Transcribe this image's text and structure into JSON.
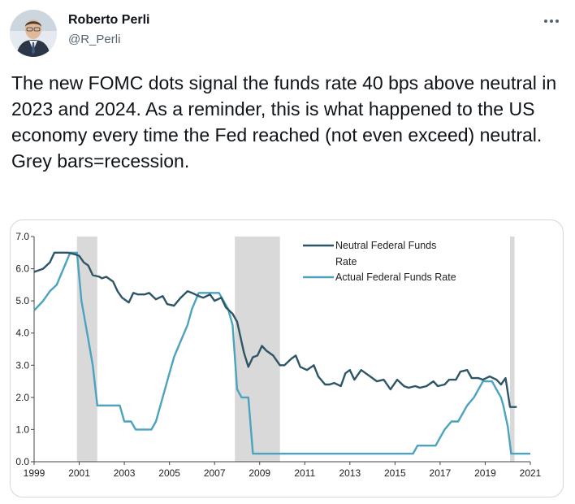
{
  "author": {
    "name": "Roberto Perli",
    "handle": "@R_Perli"
  },
  "tweet": {
    "text": "The new FOMC dots signal the funds rate 40 bps above neutral in 2023 and 2024.  As a reminder, this is what happened to the US economy every time the Fed reached (not even exceed) neutral.  Grey bars=recession."
  },
  "icons": {
    "more": "more-dots-icon",
    "avatar": "profile-photo"
  },
  "colors": {
    "neutral": "#2d5566",
    "actual": "#4ba3bf",
    "recession": "#d9d9d9"
  },
  "chart_data": {
    "type": "line",
    "ylim": [
      0,
      7
    ],
    "xlim": [
      1999,
      2021
    ],
    "yticks": [
      "0.0",
      "1.0",
      "2.0",
      "3.0",
      "4.0",
      "5.0",
      "6.0",
      "7.0"
    ],
    "xticks": [
      "1999",
      "2001",
      "2003",
      "2005",
      "2007",
      "2009",
      "2011",
      "2013",
      "2015",
      "2017",
      "2019",
      "2021"
    ],
    "legend_position": "top-right",
    "recessions": [
      [
        2000.9,
        2001.8
      ],
      [
        2007.9,
        2009.9
      ],
      [
        2020.1,
        2020.3
      ]
    ],
    "series": [
      {
        "name": "Neutral Federal Funds Rate",
        "color": "#2d5566",
        "points": [
          [
            1999.0,
            5.9
          ],
          [
            1999.4,
            6.0
          ],
          [
            1999.7,
            6.2
          ],
          [
            1999.9,
            6.5
          ],
          [
            2000.2,
            6.5
          ],
          [
            2000.5,
            6.5
          ],
          [
            2000.8,
            6.45
          ],
          [
            2001.0,
            6.4
          ],
          [
            2001.2,
            6.2
          ],
          [
            2001.4,
            6.1
          ],
          [
            2001.6,
            5.8
          ],
          [
            2001.9,
            5.75
          ],
          [
            2002.0,
            5.7
          ],
          [
            2002.2,
            5.75
          ],
          [
            2002.5,
            5.6
          ],
          [
            2002.7,
            5.3
          ],
          [
            2002.9,
            5.1
          ],
          [
            2003.2,
            4.95
          ],
          [
            2003.4,
            5.25
          ],
          [
            2003.6,
            5.2
          ],
          [
            2003.9,
            5.2
          ],
          [
            2004.1,
            5.25
          ],
          [
            2004.4,
            5.05
          ],
          [
            2004.7,
            5.15
          ],
          [
            2004.9,
            4.9
          ],
          [
            2005.2,
            4.85
          ],
          [
            2005.5,
            5.1
          ],
          [
            2005.8,
            5.3
          ],
          [
            2006.0,
            5.25
          ],
          [
            2006.3,
            5.15
          ],
          [
            2006.5,
            5.1
          ],
          [
            2006.8,
            5.2
          ],
          [
            2007.0,
            5.0
          ],
          [
            2007.3,
            5.1
          ],
          [
            2007.5,
            4.8
          ],
          [
            2007.8,
            4.6
          ],
          [
            2008.0,
            4.35
          ],
          [
            2008.3,
            3.4
          ],
          [
            2008.5,
            2.95
          ],
          [
            2008.7,
            3.25
          ],
          [
            2008.9,
            3.3
          ],
          [
            2009.1,
            3.6
          ],
          [
            2009.3,
            3.45
          ],
          [
            2009.6,
            3.3
          ],
          [
            2009.9,
            3.0
          ],
          [
            2010.1,
            3.0
          ],
          [
            2010.4,
            3.2
          ],
          [
            2010.6,
            3.3
          ],
          [
            2010.8,
            2.95
          ],
          [
            2011.1,
            2.85
          ],
          [
            2011.4,
            3.0
          ],
          [
            2011.6,
            2.65
          ],
          [
            2011.9,
            2.4
          ],
          [
            2012.1,
            2.4
          ],
          [
            2012.3,
            2.45
          ],
          [
            2012.6,
            2.35
          ],
          [
            2012.8,
            2.75
          ],
          [
            2013.0,
            2.85
          ],
          [
            2013.2,
            2.55
          ],
          [
            2013.5,
            2.85
          ],
          [
            2013.7,
            2.75
          ],
          [
            2014.0,
            2.6
          ],
          [
            2014.2,
            2.5
          ],
          [
            2014.5,
            2.55
          ],
          [
            2014.8,
            2.25
          ],
          [
            2015.1,
            2.55
          ],
          [
            2015.4,
            2.35
          ],
          [
            2015.6,
            2.3
          ],
          [
            2015.9,
            2.35
          ],
          [
            2016.1,
            2.3
          ],
          [
            2016.4,
            2.35
          ],
          [
            2016.7,
            2.5
          ],
          [
            2016.9,
            2.35
          ],
          [
            2017.2,
            2.4
          ],
          [
            2017.4,
            2.55
          ],
          [
            2017.7,
            2.55
          ],
          [
            2017.9,
            2.8
          ],
          [
            2018.2,
            2.85
          ],
          [
            2018.4,
            2.6
          ],
          [
            2018.7,
            2.6
          ],
          [
            2018.9,
            2.55
          ],
          [
            2019.2,
            2.65
          ],
          [
            2019.5,
            2.55
          ],
          [
            2019.7,
            2.4
          ],
          [
            2019.9,
            2.6
          ],
          [
            2020.1,
            1.7
          ],
          [
            2020.4,
            1.7
          ]
        ]
      },
      {
        "name": "Actual Federal Funds Rate",
        "color": "#4ba3bf",
        "points": [
          [
            1999.0,
            4.7
          ],
          [
            1999.4,
            5.0
          ],
          [
            1999.7,
            5.3
          ],
          [
            2000.0,
            5.5
          ],
          [
            2000.3,
            6.0
          ],
          [
            2000.6,
            6.5
          ],
          [
            2000.9,
            6.5
          ],
          [
            2001.1,
            5.0
          ],
          [
            2001.4,
            3.8
          ],
          [
            2001.6,
            3.0
          ],
          [
            2001.8,
            1.75
          ],
          [
            2002.1,
            1.75
          ],
          [
            2002.4,
            1.75
          ],
          [
            2002.8,
            1.75
          ],
          [
            2003.0,
            1.25
          ],
          [
            2003.3,
            1.25
          ],
          [
            2003.5,
            1.0
          ],
          [
            2004.0,
            1.0
          ],
          [
            2004.2,
            1.0
          ],
          [
            2004.4,
            1.25
          ],
          [
            2004.7,
            2.0
          ],
          [
            2005.0,
            2.75
          ],
          [
            2005.2,
            3.25
          ],
          [
            2005.5,
            3.75
          ],
          [
            2005.8,
            4.25
          ],
          [
            2006.0,
            4.75
          ],
          [
            2006.3,
            5.25
          ],
          [
            2006.6,
            5.25
          ],
          [
            2006.9,
            5.25
          ],
          [
            2007.2,
            5.25
          ],
          [
            2007.6,
            4.75
          ],
          [
            2007.8,
            4.25
          ],
          [
            2008.0,
            2.25
          ],
          [
            2008.2,
            2.0
          ],
          [
            2008.5,
            2.0
          ],
          [
            2008.7,
            0.25
          ],
          [
            2009.0,
            0.25
          ],
          [
            2011.0,
            0.25
          ],
          [
            2013.0,
            0.25
          ],
          [
            2015.0,
            0.25
          ],
          [
            2015.8,
            0.25
          ],
          [
            2016.0,
            0.5
          ],
          [
            2016.4,
            0.5
          ],
          [
            2016.8,
            0.5
          ],
          [
            2017.0,
            0.75
          ],
          [
            2017.2,
            1.0
          ],
          [
            2017.5,
            1.25
          ],
          [
            2017.8,
            1.25
          ],
          [
            2018.0,
            1.5
          ],
          [
            2018.2,
            1.75
          ],
          [
            2018.5,
            2.0
          ],
          [
            2018.7,
            2.25
          ],
          [
            2018.9,
            2.5
          ],
          [
            2019.3,
            2.5
          ],
          [
            2019.5,
            2.25
          ],
          [
            2019.7,
            2.0
          ],
          [
            2019.8,
            1.75
          ],
          [
            2020.0,
            1.1
          ],
          [
            2020.15,
            0.25
          ],
          [
            2020.6,
            0.25
          ],
          [
            2021.0,
            0.25
          ]
        ]
      }
    ]
  }
}
